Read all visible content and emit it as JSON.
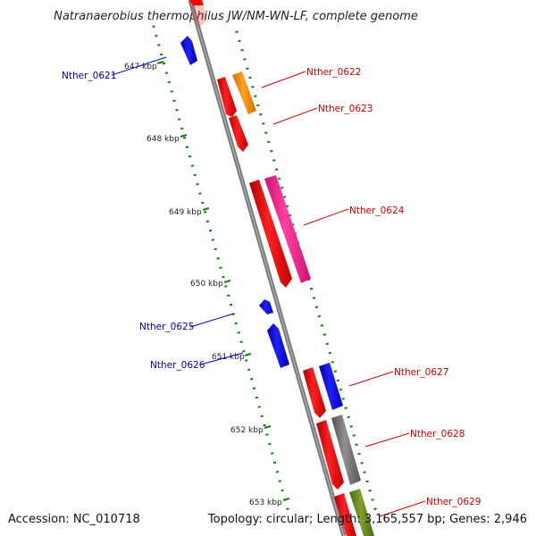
{
  "title": "Natranaerobius thermophilus JW/NM-WN-LF, complete genome",
  "footer": {
    "accession": "Accession: NC_010718",
    "topology": "Topology: circular; Length: 3,165,557 bp; Genes: 2,946"
  },
  "ticks": [
    "647 kbp",
    "648 kbp",
    "649 kbp",
    "650 kbp",
    "651 kbp",
    "652 kbp",
    "653 kbp"
  ],
  "genes": [
    {
      "id": "Nther_0621",
      "strand": "minus",
      "color": "#0000ee"
    },
    {
      "id": "Nther_0622",
      "strand": "plus",
      "color": "#cc0000"
    },
    {
      "id": "Nther_0623",
      "strand": "plus",
      "color": "#cc0000"
    },
    {
      "id": "Nther_0624",
      "strand": "plus",
      "color": "#cc0000"
    },
    {
      "id": "Nther_0625",
      "strand": "minus",
      "color": "#0000ee"
    },
    {
      "id": "Nther_0626",
      "strand": "minus",
      "color": "#0000ee"
    },
    {
      "id": "Nther_0627",
      "strand": "plus",
      "color": "#cc0000"
    },
    {
      "id": "Nther_0628",
      "strand": "plus",
      "color": "#cc0000"
    },
    {
      "id": "Nther_0629",
      "strand": "plus",
      "color": "#cc0000"
    }
  ],
  "colors": {
    "backbone": "#888888",
    "tick": "#1a7a1a",
    "cds": "#ff0000",
    "minus_gene": "#0000ff",
    "orange_feature": "#ff8c00",
    "pink_feature": "#ff3399",
    "blue_feature": "#0000ff",
    "gray_feature": "#707070",
    "olive_feature": "#6b8e23"
  }
}
